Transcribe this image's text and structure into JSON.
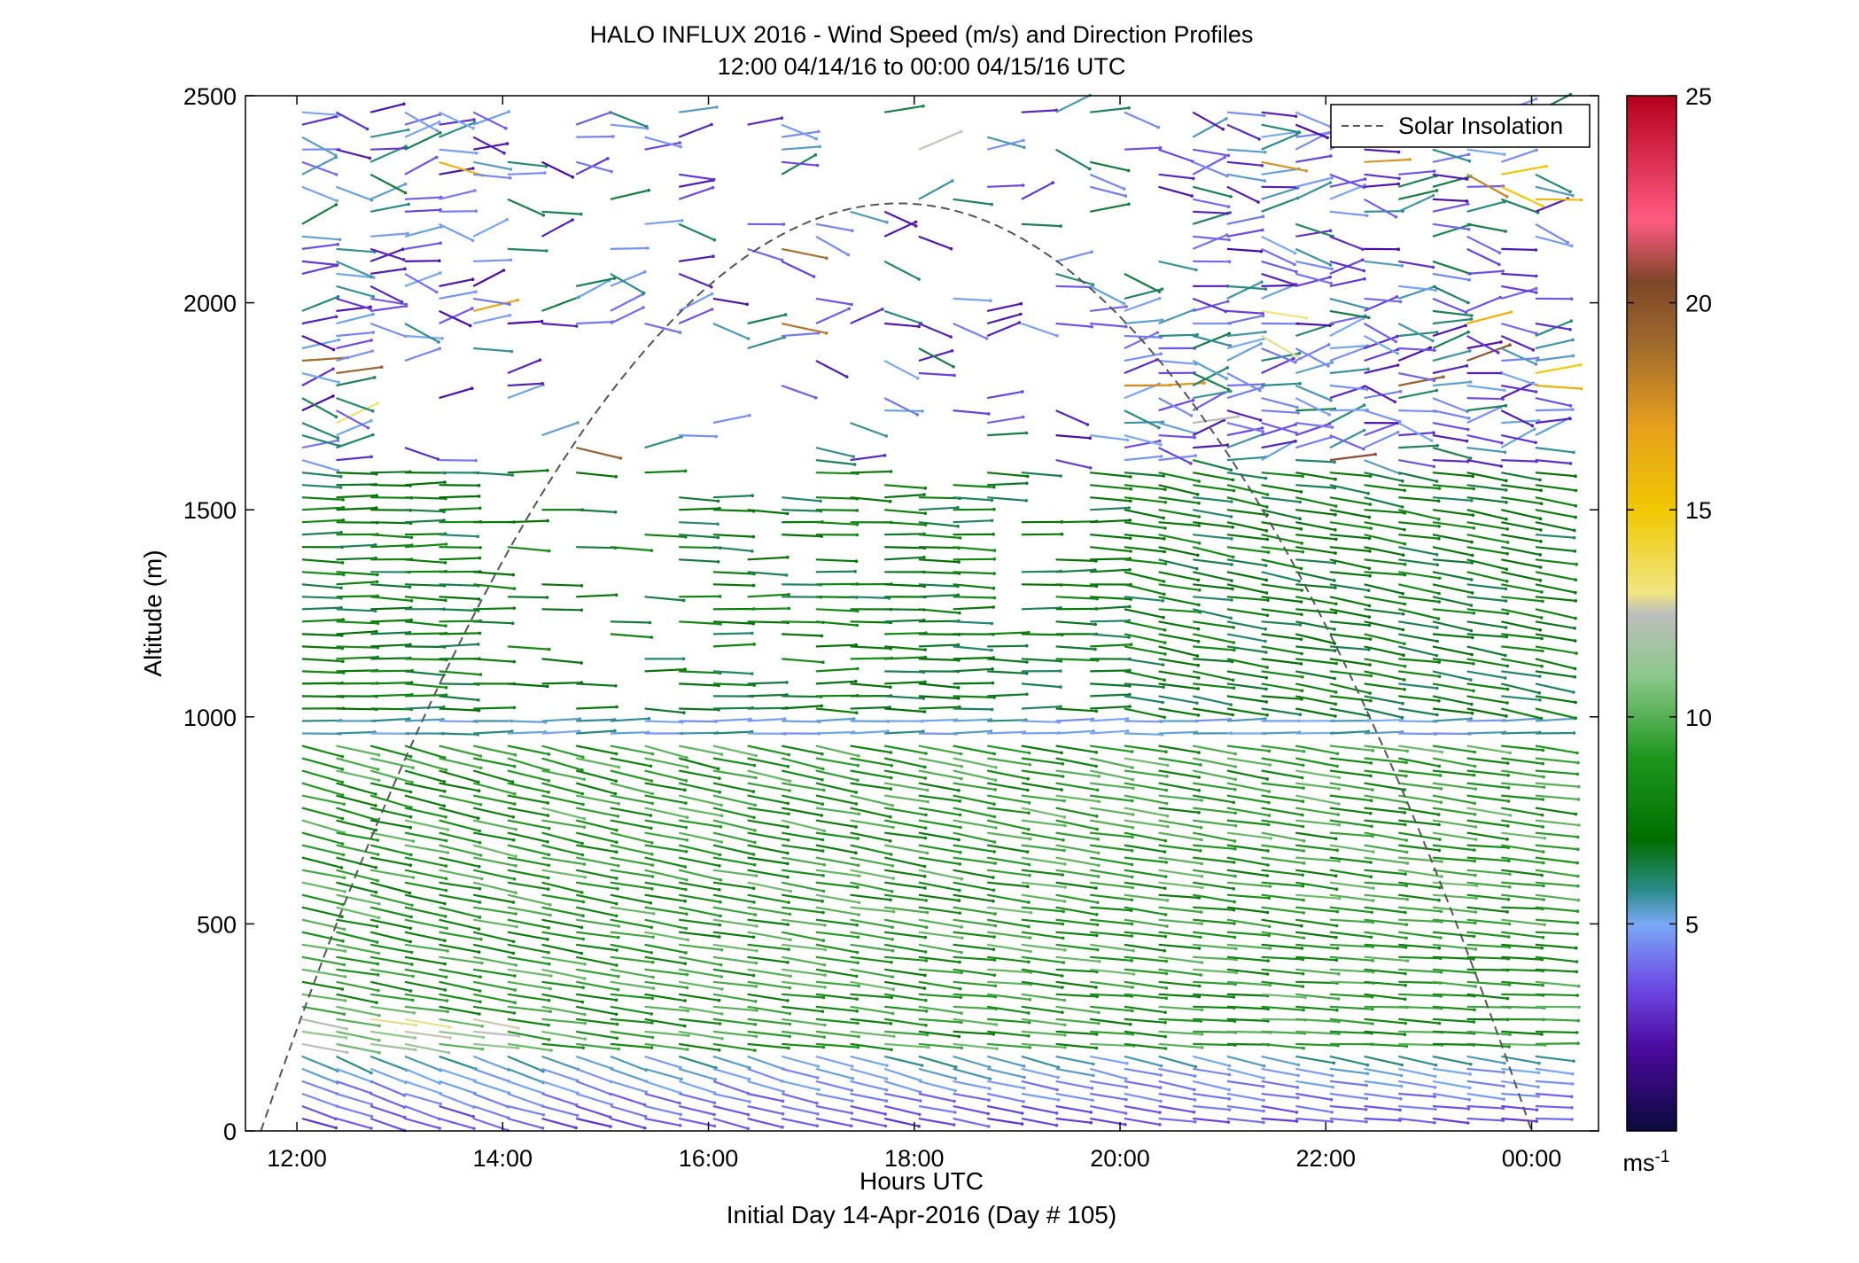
{
  "chart_data": {
    "type": "wind-barb profile (time-height)",
    "title": "HALO INFLUX 2016 - Wind Speed (m/s) and Direction Profiles",
    "subtitle": "12:00 04/14/16 to 00:00 04/15/16  UTC",
    "xlabel": "Hours UTC",
    "xlabel2": "Initial Day 14-Apr-2016 (Day # 105)",
    "ylabel": "Altitude (m)",
    "xlim": [
      11.5,
      24.65
    ],
    "ylim": [
      0,
      2500
    ],
    "xticks": [
      {
        "value": 12,
        "label": "12:00"
      },
      {
        "value": 14,
        "label": "14:00"
      },
      {
        "value": 16,
        "label": "16:00"
      },
      {
        "value": 18,
        "label": "18:00"
      },
      {
        "value": 20,
        "label": "20:00"
      },
      {
        "value": 22,
        "label": "22:00"
      },
      {
        "value": 24,
        "label": "00:00"
      }
    ],
    "yticks": [
      0,
      500,
      1000,
      1500,
      2000,
      2500
    ],
    "colorbar": {
      "range": [
        0,
        25
      ],
      "ticks": [
        5,
        10,
        15,
        20,
        25
      ],
      "unit": "ms-1",
      "colormap": [
        {
          "v": 0,
          "c": "#0a0a3c"
        },
        {
          "v": 2,
          "c": "#4b0aa0"
        },
        {
          "v": 3.5,
          "c": "#6e4be6"
        },
        {
          "v": 5,
          "c": "#7aaaf5"
        },
        {
          "v": 5.8,
          "c": "#2d8c8c"
        },
        {
          "v": 7,
          "c": "#006e00"
        },
        {
          "v": 9,
          "c": "#1e961e"
        },
        {
          "v": 11,
          "c": "#8cc88c"
        },
        {
          "v": 12.5,
          "c": "#bebebe"
        },
        {
          "v": 13,
          "c": "#f0e682"
        },
        {
          "v": 15,
          "c": "#f0c800"
        },
        {
          "v": 17,
          "c": "#e6a01e"
        },
        {
          "v": 19,
          "c": "#a0692d"
        },
        {
          "v": 20.5,
          "c": "#7d4628"
        },
        {
          "v": 22,
          "c": "#ff5a82"
        },
        {
          "v": 25,
          "c": "#b4001e"
        }
      ]
    },
    "legend": {
      "entries": [
        "Solar Insolation"
      ],
      "placement": "top-right",
      "style": "dashed gray line"
    },
    "solar_insolation": {
      "start_hour": 11.65,
      "peak_hour": 17.85,
      "peak_altitude": 2240,
      "end_hour": 24.0
    },
    "observations": {
      "time_step_hours": 0.333,
      "altitude_step_m": 30,
      "start_hour": 12.05,
      "end_hour": 24.05,
      "description_regions": [
        {
          "layer": "0-200 m",
          "speed_ms": "2-5",
          "direction": "south-westerly, rising toward east"
        },
        {
          "layer": "200-900 m",
          "speed_ms": "7-11",
          "direction": "westerly"
        },
        {
          "layer": "900-1600 m",
          "speed_ms": "6-9",
          "direction": "westerly"
        },
        {
          "layer": "1600-2500 m",
          "speed_ms": "2-6",
          "direction": "variable"
        }
      ]
    }
  }
}
